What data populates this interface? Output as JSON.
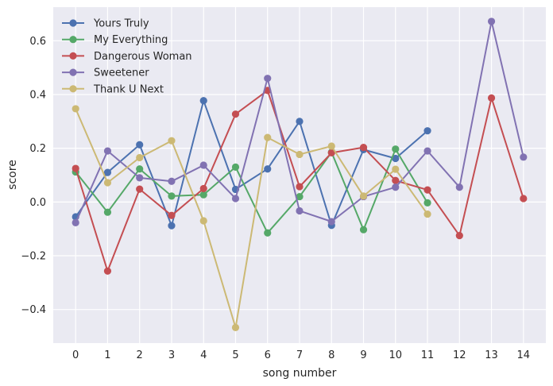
{
  "chart_data": {
    "type": "line",
    "title": "",
    "xlabel": "song number",
    "ylabel": "score",
    "xlim": [
      -0.7,
      14.7
    ],
    "ylim": [
      -0.525,
      0.725
    ],
    "x_ticks": [
      0,
      1,
      2,
      3,
      4,
      5,
      6,
      7,
      8,
      9,
      10,
      11,
      12,
      13,
      14
    ],
    "y_ticks": [
      -0.4,
      -0.2,
      0.0,
      0.2,
      0.4,
      0.6
    ],
    "y_tick_labels": [
      "−0.4",
      "−0.2",
      "0.0",
      "0.2",
      "0.4",
      "0.6"
    ],
    "grid": true,
    "legend_position": "top-left",
    "series": [
      {
        "name": "Yours Truly",
        "color": "#4c72b0",
        "x": [
          0,
          1,
          2,
          3,
          4,
          5,
          6,
          7,
          8,
          9,
          10,
          11
        ],
        "values": [
          -0.055,
          0.11,
          0.213,
          -0.088,
          0.377,
          0.047,
          0.123,
          0.3,
          -0.087,
          0.195,
          0.162,
          0.265
        ]
      },
      {
        "name": "My Everything",
        "color": "#55a868",
        "x": [
          0,
          1,
          2,
          3,
          4,
          5,
          6,
          7,
          8,
          9,
          10,
          11
        ],
        "values": [
          0.112,
          -0.038,
          0.123,
          0.022,
          0.027,
          0.13,
          -0.115,
          0.02,
          0.185,
          -0.103,
          0.197,
          -0.003
        ]
      },
      {
        "name": "Dangerous Woman",
        "color": "#c44e52",
        "x": [
          0,
          1,
          2,
          3,
          4,
          5,
          6,
          7,
          8,
          9,
          10,
          11,
          12,
          13,
          14
        ],
        "values": [
          0.125,
          -0.257,
          0.048,
          -0.05,
          0.05,
          0.327,
          0.415,
          0.057,
          0.183,
          0.203,
          0.08,
          0.045,
          -0.125,
          0.387,
          0.013
        ]
      },
      {
        "name": "Sweetener",
        "color": "#8172b2",
        "x": [
          0,
          1,
          2,
          3,
          4,
          5,
          6,
          7,
          8,
          9,
          10,
          11,
          12,
          13,
          14
        ],
        "values": [
          -0.077,
          0.19,
          0.09,
          0.077,
          0.137,
          0.013,
          0.46,
          -0.033,
          -0.073,
          0.02,
          0.055,
          0.19,
          0.055,
          0.672,
          0.167
        ]
      },
      {
        "name": "Thank U Next",
        "color": "#ccb974",
        "x": [
          0,
          1,
          2,
          3,
          4,
          5,
          6,
          7,
          8,
          9,
          10,
          11
        ],
        "values": [
          0.347,
          0.072,
          0.165,
          0.228,
          -0.07,
          -0.467,
          0.24,
          0.177,
          0.208,
          0.022,
          0.122,
          -0.045
        ]
      }
    ]
  }
}
